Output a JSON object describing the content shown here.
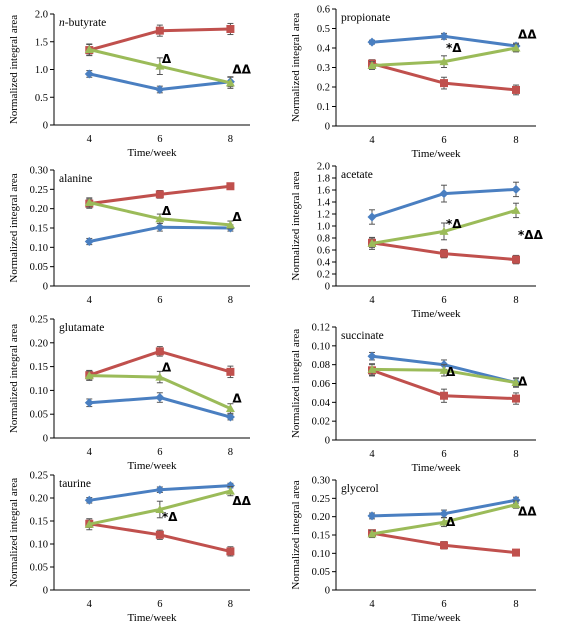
{
  "colors": {
    "blue": "#4a7fc1",
    "red": "#c0504d",
    "green": "#9bbb59"
  },
  "chart_data": [
    {
      "type": "line",
      "title": "n-butyrate",
      "title_italic_prefix": "n",
      "xlabel": "Time/week",
      "ylabel": "Normalized integral area",
      "x": [
        4,
        6,
        8
      ],
      "x_ticks": [
        "4",
        "6",
        "8"
      ],
      "ylim": [
        0,
        2
      ],
      "y_ticks": [
        "0",
        "0.5",
        "1.0",
        "1.5",
        "2.0"
      ],
      "series": [
        {
          "color": "blue",
          "values": [
            0.92,
            0.64,
            0.78
          ],
          "errors": [
            0.06,
            0.06,
            0.09
          ]
        },
        {
          "color": "red",
          "values": [
            1.35,
            1.7,
            1.73
          ],
          "errors": [
            0.1,
            0.1,
            0.1
          ]
        },
        {
          "color": "green",
          "values": [
            1.36,
            1.06,
            0.76
          ],
          "errors": [
            0.1,
            0.15,
            0.1
          ]
        }
      ],
      "annotations": [
        {
          "x": 6,
          "y": 1.12,
          "text": "Δ"
        },
        {
          "x": 8,
          "y": 0.93,
          "text": "ΔΔ"
        }
      ]
    },
    {
      "type": "line",
      "title": "propionate",
      "xlabel": "Time/week",
      "ylabel": "Normalized integral area",
      "x": [
        4,
        6,
        8
      ],
      "x_ticks": [
        "4",
        "6",
        "8"
      ],
      "ylim": [
        0,
        0.6
      ],
      "y_ticks": [
        "0",
        "0.1",
        "0.2",
        "0.3",
        "0.4",
        "0.5",
        "0.6"
      ],
      "series": [
        {
          "color": "blue",
          "values": [
            0.43,
            0.46,
            0.41
          ],
          "errors": [
            0.01,
            0.015,
            0.015
          ]
        },
        {
          "color": "red",
          "values": [
            0.32,
            0.22,
            0.185
          ],
          "errors": [
            0.02,
            0.03,
            0.025
          ]
        },
        {
          "color": "green",
          "values": [
            0.31,
            0.33,
            0.4
          ],
          "errors": [
            0.02,
            0.03,
            0.02
          ]
        }
      ],
      "annotations": [
        {
          "x": 6,
          "y": 0.38,
          "text": "*Δ"
        },
        {
          "x": 8,
          "y": 0.45,
          "text": "ΔΔ"
        }
      ]
    },
    {
      "type": "line",
      "title": "alanine",
      "xlabel": "",
      "ylabel": "Normalized integral area",
      "x": [
        4,
        6,
        8
      ],
      "x_ticks": [
        "4",
        "6",
        "8"
      ],
      "ylim": [
        0,
        0.3
      ],
      "y_ticks": [
        "0",
        "0.05",
        "0.10",
        "0.15",
        "0.20",
        "0.25",
        "0.30"
      ],
      "series": [
        {
          "color": "blue",
          "values": [
            0.115,
            0.152,
            0.15
          ],
          "errors": [
            0.008,
            0.01,
            0.008
          ]
        },
        {
          "color": "red",
          "values": [
            0.213,
            0.237,
            0.258
          ],
          "errors": [
            0.012,
            0.01,
            0.008
          ]
        },
        {
          "color": "green",
          "values": [
            0.216,
            0.174,
            0.158
          ],
          "errors": [
            0.012,
            0.012,
            0.01
          ]
        }
      ],
      "annotations": [
        {
          "x": 6,
          "y": 0.184,
          "text": "Δ"
        },
        {
          "x": 8,
          "y": 0.168,
          "text": "Δ"
        }
      ]
    },
    {
      "type": "line",
      "title": "acetate",
      "xlabel": "Time/week",
      "ylabel": "Normalized integral area",
      "x": [
        4,
        6,
        8
      ],
      "x_ticks": [
        "4",
        "6",
        "8"
      ],
      "ylim": [
        0,
        2
      ],
      "y_ticks": [
        "0",
        "0.2",
        "0.4",
        "0.6",
        "0.8",
        "1.0",
        "1.2",
        "1.4",
        "1.6",
        "1.8",
        "2.0"
      ],
      "series": [
        {
          "color": "blue",
          "values": [
            1.15,
            1.54,
            1.61
          ],
          "errors": [
            0.12,
            0.14,
            0.12
          ]
        },
        {
          "color": "red",
          "values": [
            0.72,
            0.54,
            0.44
          ],
          "errors": [
            0.08,
            0.07,
            0.07
          ]
        },
        {
          "color": "green",
          "values": [
            0.71,
            0.91,
            1.26
          ],
          "errors": [
            0.1,
            0.14,
            0.12
          ]
        }
      ],
      "annotations": [
        {
          "x": 6,
          "y": 0.97,
          "text": "*Δ"
        },
        {
          "x": 8,
          "y": 0.78,
          "text": "*ΔΔ"
        }
      ]
    },
    {
      "type": "line",
      "title": "glutamate",
      "xlabel": "Time/week",
      "ylabel": "Normalized integral area",
      "x": [
        4,
        6,
        8
      ],
      "x_ticks": [
        "4",
        "6",
        "8"
      ],
      "ylim": [
        0,
        0.25
      ],
      "y_ticks": [
        "0",
        "0.05",
        "0.10",
        "0.15",
        "0.20",
        "0.25"
      ],
      "series": [
        {
          "color": "blue",
          "values": [
            0.074,
            0.085,
            0.044
          ],
          "errors": [
            0.008,
            0.01,
            0.006
          ]
        },
        {
          "color": "red",
          "values": [
            0.132,
            0.182,
            0.139
          ],
          "errors": [
            0.01,
            0.01,
            0.012
          ]
        },
        {
          "color": "green",
          "values": [
            0.131,
            0.128,
            0.062
          ],
          "errors": [
            0.01,
            0.012,
            0.01
          ]
        }
      ],
      "annotations": [
        {
          "x": 6,
          "y": 0.14,
          "text": "Δ"
        },
        {
          "x": 8,
          "y": 0.075,
          "text": "Δ"
        }
      ]
    },
    {
      "type": "line",
      "title": "succinate",
      "xlabel": "Time/week",
      "ylabel": "Normalized integral area",
      "x": [
        4,
        6,
        8
      ],
      "x_ticks": [
        "4",
        "6",
        "8"
      ],
      "ylim": [
        0,
        0.12
      ],
      "y_ticks": [
        "0",
        "0.02",
        "0.04",
        "0.06",
        "0.08",
        "0.10",
        "0.12"
      ],
      "series": [
        {
          "color": "blue",
          "values": [
            0.089,
            0.08,
            0.061
          ],
          "errors": [
            0.004,
            0.005,
            0.004
          ]
        },
        {
          "color": "red",
          "values": [
            0.074,
            0.047,
            0.044
          ],
          "errors": [
            0.006,
            0.007,
            0.006
          ]
        },
        {
          "color": "green",
          "values": [
            0.075,
            0.074,
            0.061
          ],
          "errors": [
            0.006,
            0.006,
            0.005
          ]
        }
      ],
      "annotations": [
        {
          "x": 6,
          "y": 0.068,
          "text": "Δ"
        },
        {
          "x": 8,
          "y": 0.058,
          "text": "Δ"
        }
      ]
    },
    {
      "type": "line",
      "title": "taurine",
      "xlabel": "Time/week",
      "ylabel": "Normalized integral area",
      "x": [
        4,
        6,
        8
      ],
      "x_ticks": [
        "4",
        "6",
        "8"
      ],
      "ylim": [
        0,
        0.25
      ],
      "y_ticks": [
        "0",
        "0.05",
        "0.10",
        "0.15",
        "0.20",
        "0.25"
      ],
      "series": [
        {
          "color": "blue",
          "values": [
            0.195,
            0.218,
            0.227
          ],
          "errors": [
            0.006,
            0.006,
            0.005
          ]
        },
        {
          "color": "red",
          "values": [
            0.144,
            0.12,
            0.084
          ],
          "errors": [
            0.008,
            0.01,
            0.01
          ]
        },
        {
          "color": "green",
          "values": [
            0.143,
            0.175,
            0.215
          ],
          "errors": [
            0.012,
            0.018,
            0.01
          ]
        }
      ],
      "annotations": [
        {
          "x": 6,
          "y": 0.15,
          "text": "*Δ"
        },
        {
          "x": 8,
          "y": 0.185,
          "text": "ΔΔ"
        }
      ]
    },
    {
      "type": "line",
      "title": "glycerol",
      "xlabel": "Time/week",
      "ylabel": "Normalized integral area",
      "x": [
        4,
        6,
        8
      ],
      "x_ticks": [
        "4",
        "6",
        "8"
      ],
      "ylim": [
        0,
        0.3
      ],
      "y_ticks": [
        "0",
        "0.05",
        "0.10",
        "0.15",
        "0.20",
        "0.25",
        "0.30"
      ],
      "series": [
        {
          "color": "blue",
          "values": [
            0.202,
            0.208,
            0.245
          ],
          "errors": [
            0.008,
            0.01,
            0.008
          ]
        },
        {
          "color": "red",
          "values": [
            0.155,
            0.122,
            0.102
          ],
          "errors": [
            0.008,
            0.01,
            0.008
          ]
        },
        {
          "color": "green",
          "values": [
            0.153,
            0.185,
            0.233
          ],
          "errors": [
            0.01,
            0.012,
            0.01
          ]
        }
      ],
      "annotations": [
        {
          "x": 6,
          "y": 0.175,
          "text": "Δ"
        },
        {
          "x": 8,
          "y": 0.203,
          "text": "ΔΔ"
        }
      ]
    }
  ]
}
